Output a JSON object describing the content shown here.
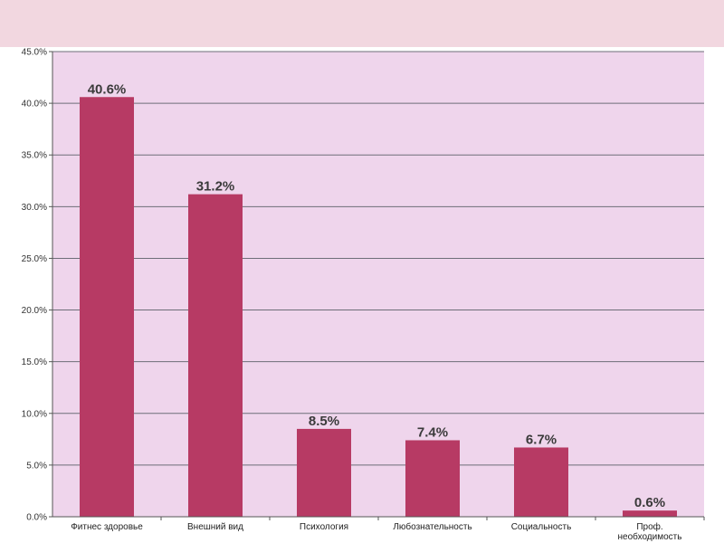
{
  "chart_data": {
    "type": "bar",
    "categories": [
      "Фитнес здоровье",
      "Внешний вид",
      "Психология",
      "Любознательность",
      "Социальность",
      "Проф. необходимость"
    ],
    "values": [
      40.6,
      31.2,
      8.5,
      7.4,
      6.7,
      0.6
    ],
    "data_labels": [
      "40.6%",
      "31.2%",
      "8.5%",
      "7.4%",
      "6.7%",
      "0.6%"
    ],
    "y_ticks": [
      "0.0%",
      "5.0%",
      "10.0%",
      "15.0%",
      "20.0%",
      "25.0%",
      "30.0%",
      "35.0%",
      "40.0%",
      "45.0%"
    ],
    "ylim": [
      0,
      45
    ],
    "grid": true,
    "colors": {
      "bar": "#b73a64",
      "plot_background": "#efd5ec",
      "page_band": "#f2d7e0",
      "grid": "#6e6e78"
    }
  }
}
